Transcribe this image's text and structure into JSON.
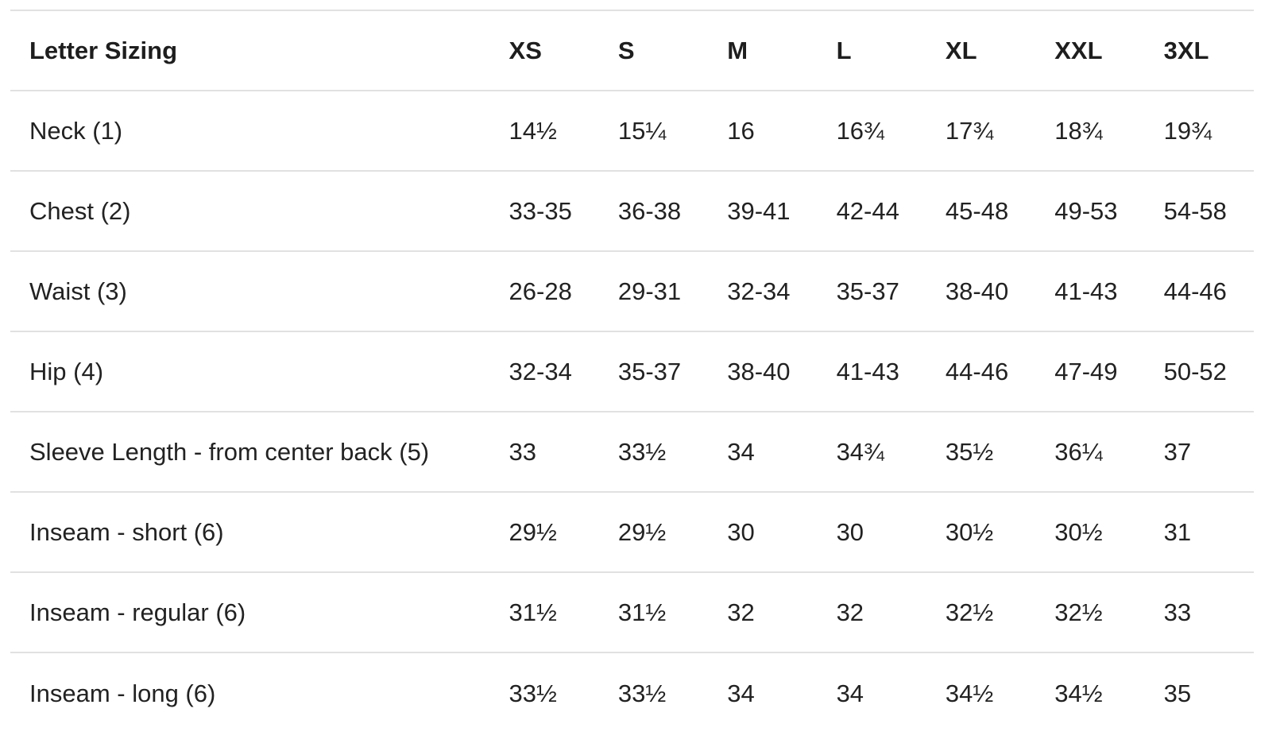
{
  "table": {
    "header": {
      "label": "Letter Sizing",
      "sizes": [
        "XS",
        "S",
        "M",
        "L",
        "XL",
        "XXL",
        "3XL"
      ]
    },
    "rows": [
      {
        "label": "Neck (1)",
        "values": [
          "14½",
          "15¼",
          "16",
          "16¾",
          "17¾",
          "18¾",
          "19¾"
        ]
      },
      {
        "label": "Chest (2)",
        "values": [
          "33-35",
          "36-38",
          "39-41",
          "42-44",
          "45-48",
          "49-53",
          "54-58"
        ]
      },
      {
        "label": "Waist (3)",
        "values": [
          "26-28",
          "29-31",
          "32-34",
          "35-37",
          "38-40",
          "41-43",
          "44-46"
        ]
      },
      {
        "label": "Hip (4)",
        "values": [
          "32-34",
          "35-37",
          "38-40",
          "41-43",
          "44-46",
          "47-49",
          "50-52"
        ]
      },
      {
        "label": "Sleeve Length - from center back (5)",
        "values": [
          "33",
          "33½",
          "34",
          "34¾",
          "35½",
          "36¼",
          "37"
        ]
      },
      {
        "label": "Inseam - short (6)",
        "values": [
          "29½",
          "29½",
          "30",
          "30",
          "30½",
          "30½",
          "31"
        ]
      },
      {
        "label": "Inseam - regular (6)",
        "values": [
          "31½",
          "31½",
          "32",
          "32",
          "32½",
          "32½",
          "33"
        ]
      },
      {
        "label": "Inseam - long (6)",
        "values": [
          "33½",
          "33½",
          "34",
          "34",
          "34½",
          "34½",
          "35"
        ]
      }
    ]
  }
}
